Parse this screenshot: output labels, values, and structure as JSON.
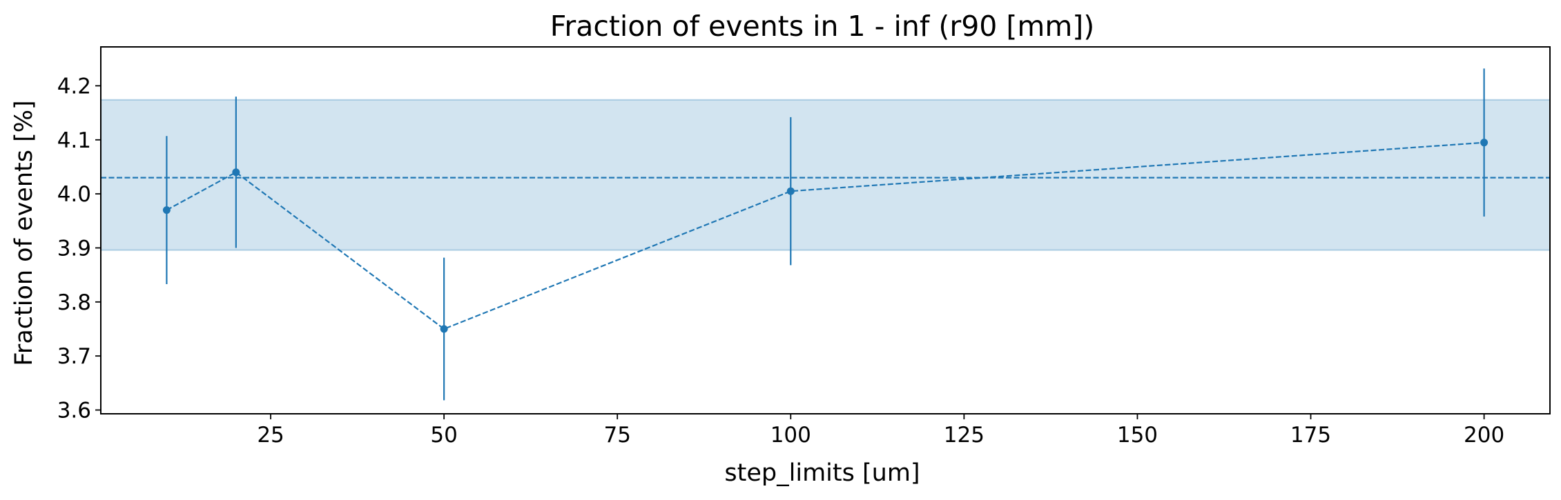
{
  "chart_data": {
    "type": "line",
    "title": "Fraction of events in 1 - inf (r90 [mm])",
    "xlabel": "step_limits [um]",
    "ylabel": "Fraction of events [%]",
    "xlim": [
      0.5,
      209.5
    ],
    "ylim": [
      3.593,
      4.272
    ],
    "xticks": [
      25,
      50,
      75,
      100,
      125,
      150,
      175,
      200
    ],
    "yticks": [
      3.6,
      3.7,
      3.8,
      3.9,
      4.0,
      4.1,
      4.2
    ],
    "xtick_labels": [
      "25",
      "50",
      "75",
      "100",
      "125",
      "150",
      "175",
      "200"
    ],
    "ytick_labels": [
      "3.6",
      "3.7",
      "3.8",
      "3.9",
      "4.0",
      "4.1",
      "4.2"
    ],
    "series": [
      {
        "x": [
          10,
          20,
          50,
          100,
          200
        ],
        "y": [
          3.97,
          4.04,
          3.75,
          4.005,
          4.095
        ],
        "yerr": [
          0.137,
          0.14,
          0.132,
          0.137,
          0.137
        ],
        "color": "#1f77b4",
        "linestyle": "dashed",
        "marker": "circle"
      }
    ],
    "reference_line": {
      "y": 4.03,
      "color": "#1f77b4",
      "linestyle": "dashed"
    },
    "band": {
      "y_low": 3.896,
      "y_high": 4.174,
      "color": "#1f77b4",
      "opacity": 0.2
    },
    "grid": false,
    "legend": "none"
  }
}
